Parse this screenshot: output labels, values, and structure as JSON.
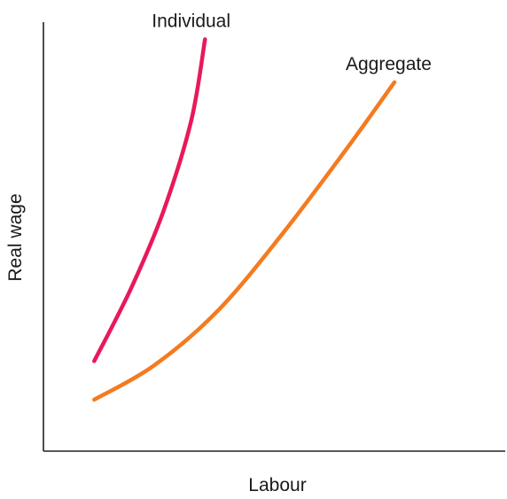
{
  "chart_data": {
    "type": "line",
    "xlabel": "Labour",
    "ylabel": "Real wage",
    "series": [
      {
        "name": "Individual",
        "color": "#e8195a",
        "points": [
          [
            0.11,
            0.21
          ],
          [
            0.19,
            0.38
          ],
          [
            0.26,
            0.56
          ],
          [
            0.32,
            0.77
          ],
          [
            0.35,
            0.96
          ]
        ]
      },
      {
        "name": "Aggregate",
        "color": "#f47b20",
        "points": [
          [
            0.11,
            0.12
          ],
          [
            0.24,
            0.2
          ],
          [
            0.38,
            0.33
          ],
          [
            0.52,
            0.51
          ],
          [
            0.66,
            0.71
          ],
          [
            0.76,
            0.86
          ]
        ]
      }
    ],
    "grid": false
  }
}
